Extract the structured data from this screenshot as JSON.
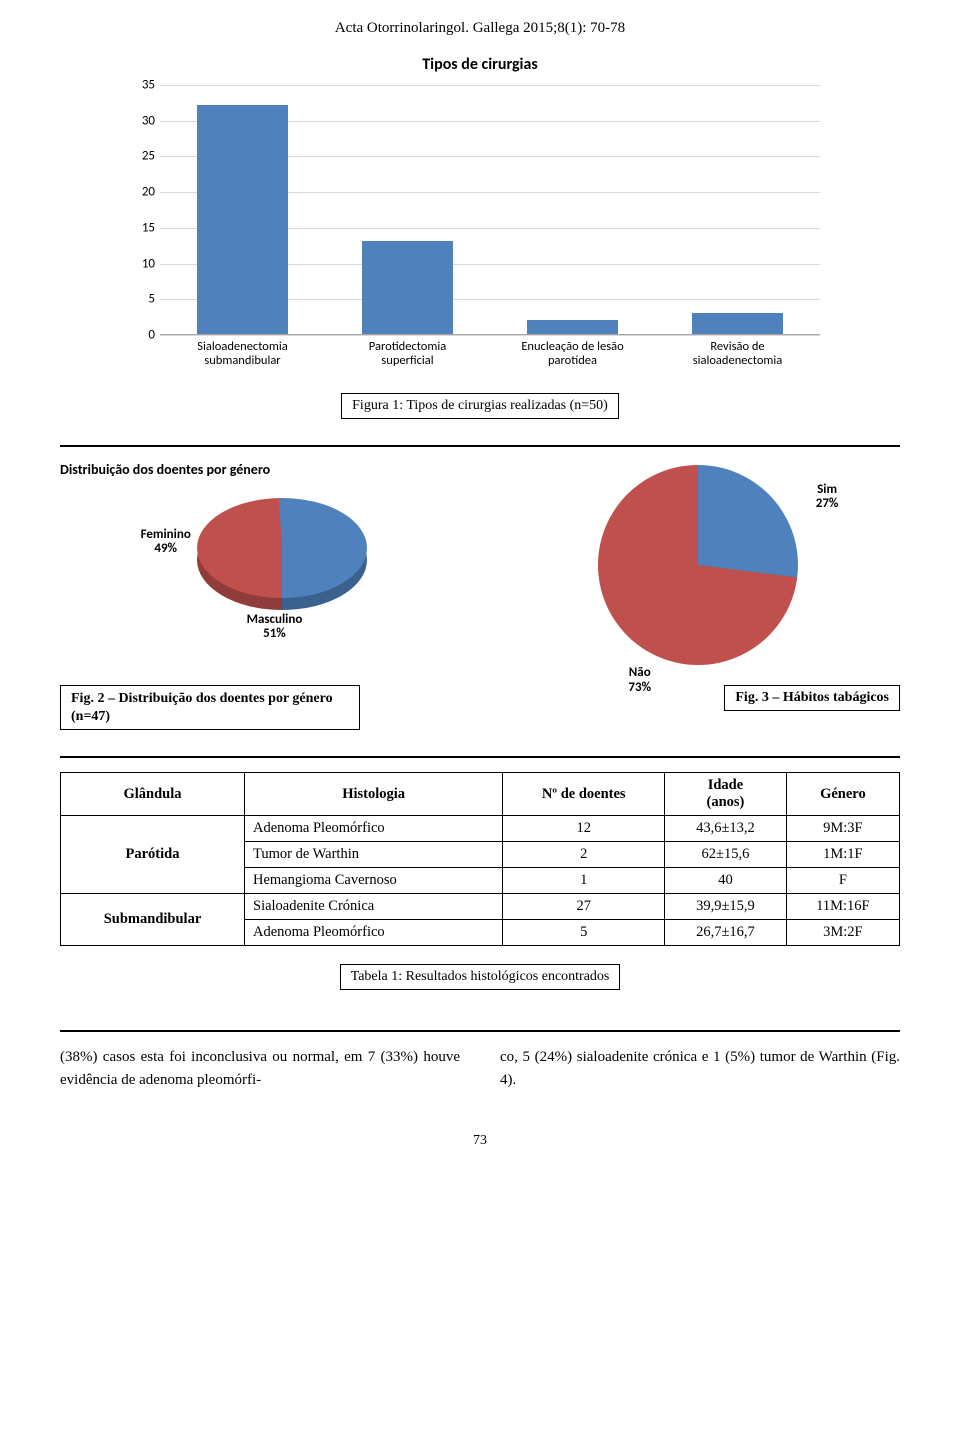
{
  "header": "Acta Otorrinolaringol. Gallega 2015;8(1): 70-78",
  "bar_chart": {
    "type": "bar",
    "title": "Tipos de cirurgias",
    "title_fontsize": 15,
    "categories": [
      "Sialoadenectomia\nsubmandibular",
      "Parotidectomia\nsuperficial",
      "Enucleação de lesão\nparotídea",
      "Revisão de\nsialoadenectomia"
    ],
    "values": [
      32,
      13,
      2,
      3
    ],
    "bar_color": "#4f81bd",
    "grid_color": "#d9d9d9",
    "axis_color": "#a6a6a6",
    "background_color": "#ffffff",
    "ylim": [
      0,
      35
    ],
    "ytick_step": 5,
    "yticks": [
      0,
      5,
      10,
      15,
      20,
      25,
      30,
      35
    ],
    "bar_width_ratio": 0.55,
    "label_font": "Calibri",
    "label_fontsize": 13
  },
  "fig1_caption": "Figura 1: Tipos de cirurgias realizadas (n=50)",
  "pie_gender": {
    "type": "pie_3d",
    "title": "Distribuição dos doentes por género",
    "slices": [
      {
        "label": "Feminino",
        "value": 49,
        "text": "Feminino\n49%",
        "color": "#c0504d"
      },
      {
        "label": "Masculino",
        "value": 51,
        "text": "Masculino\n51%",
        "color": "#4f81bd"
      }
    ],
    "background_color": "#ffffff",
    "label_fontsize": 13
  },
  "pie_smoke": {
    "type": "pie",
    "slices": [
      {
        "label": "Sim",
        "value": 27,
        "text": "Sim\n27%",
        "color": "#4f81bd"
      },
      {
        "label": "Não",
        "value": 73,
        "text": "Não\n73%",
        "color": "#c0504d"
      }
    ],
    "background_color": "#ffffff",
    "label_fontsize": 13
  },
  "fig2_caption": "Fig. 2 – Distribuição dos doentes por género (n=47)",
  "fig3_caption": "Fig. 3 – Hábitos tabágicos",
  "table": {
    "columns": [
      "Glândula",
      "Histologia",
      "Nº de doentes",
      "Idade (anos)",
      "Género"
    ],
    "idade_header_lines": [
      "Idade",
      "(anos)"
    ],
    "groups": [
      {
        "glandula": "Parótida",
        "rows": [
          {
            "hist": "Adenoma Pleomórfico",
            "n": "12",
            "idade": "43,6±13,2",
            "gen": "9M:3F"
          },
          {
            "hist": "Tumor de Warthin",
            "n": "2",
            "idade": "62±15,6",
            "gen": "1M:1F"
          },
          {
            "hist": "Hemangioma Cavernoso",
            "n": "1",
            "idade": "40",
            "gen": "F"
          }
        ]
      },
      {
        "glandula": "Submandibular",
        "rows": [
          {
            "hist": "Sialoadenite Crónica",
            "n": "27",
            "idade": "39,9±15,9",
            "gen": "11M:16F"
          },
          {
            "hist": "Adenoma Pleomórfico",
            "n": "5",
            "idade": "26,7±16,7",
            "gen": "3M:2F"
          }
        ]
      }
    ]
  },
  "table_caption": "Tabela 1: Resultados histológicos encontrados",
  "body_text": {
    "left": "(38%) casos esta foi inconclusiva ou normal, em 7 (33%) houve evidência de adenoma pleomórfi-",
    "right": "co, 5 (24%) sialoadenite crónica e 1 (5%) tumor de Warthin (Fig. 4)."
  },
  "page_number": "73",
  "colors": {
    "blue": "#4f81bd",
    "red": "#c0504d",
    "text": "#000000",
    "background": "#ffffff"
  }
}
